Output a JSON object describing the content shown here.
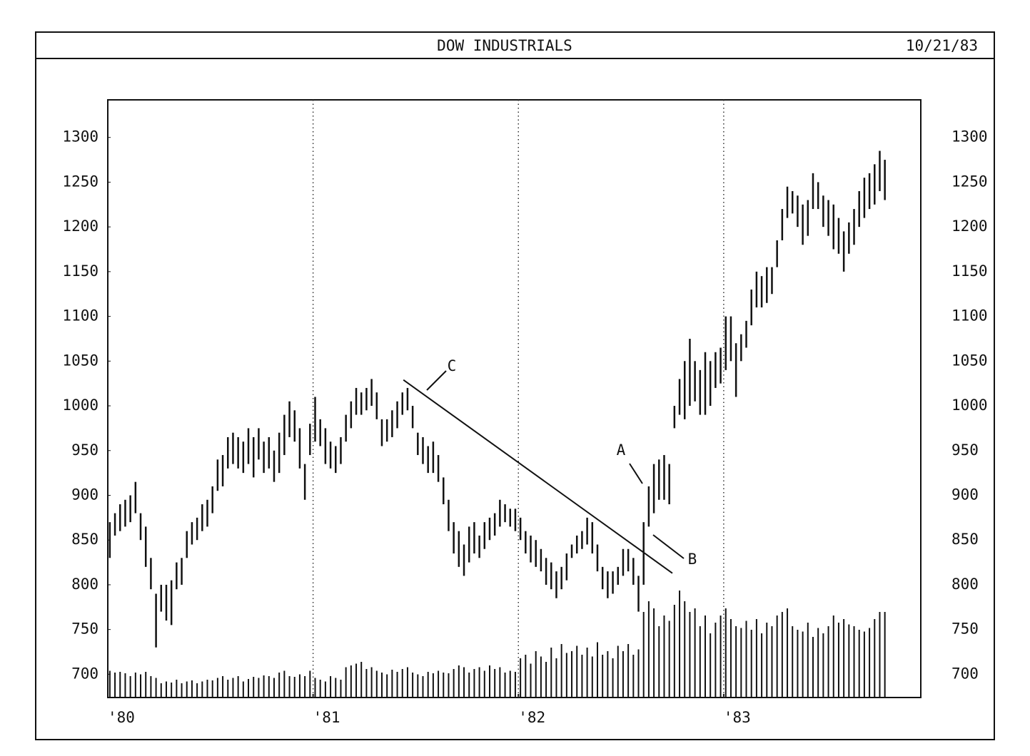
{
  "chart_data": {
    "type": "hlc-bar",
    "title": "DOW INDUSTRIALS",
    "date": "10/21/83",
    "xlim": [
      1980,
      1983.96
    ],
    "xticks": [
      {
        "value": 1980,
        "label": "'80"
      },
      {
        "value": 1981,
        "label": "'81"
      },
      {
        "value": 1982,
        "label": "'82"
      },
      {
        "value": 1983,
        "label": "'83"
      }
    ],
    "ylim": [
      674,
      1342
    ],
    "yticks": [
      700,
      750,
      800,
      850,
      900,
      950,
      1000,
      1050,
      1100,
      1150,
      1200,
      1250,
      1300
    ],
    "grid": "x-dotted",
    "color": "#111111",
    "volume_lim": [
      0,
      300
    ],
    "x": [
      1980.01,
      1980.035,
      1980.06,
      1980.085,
      1980.11,
      1980.135,
      1980.16,
      1980.185,
      1980.21,
      1980.235,
      1980.26,
      1980.285,
      1980.31,
      1980.335,
      1980.36,
      1980.385,
      1980.41,
      1980.435,
      1980.46,
      1980.485,
      1980.51,
      1980.535,
      1980.56,
      1980.585,
      1980.61,
      1980.635,
      1980.66,
      1980.685,
      1980.71,
      1980.735,
      1980.76,
      1980.785,
      1980.81,
      1980.835,
      1980.86,
      1980.885,
      1980.91,
      1980.935,
      1980.96,
      1980.985,
      1981.01,
      1981.035,
      1981.06,
      1981.085,
      1981.11,
      1981.135,
      1981.16,
      1981.185,
      1981.21,
      1981.235,
      1981.26,
      1981.285,
      1981.31,
      1981.335,
      1981.36,
      1981.385,
      1981.41,
      1981.435,
      1981.46,
      1981.485,
      1981.51,
      1981.535,
      1981.56,
      1981.585,
      1981.61,
      1981.635,
      1981.66,
      1981.685,
      1981.71,
      1981.735,
      1981.76,
      1981.785,
      1981.81,
      1981.835,
      1981.86,
      1981.885,
      1981.91,
      1981.935,
      1981.96,
      1981.985,
      1982.01,
      1982.035,
      1982.06,
      1982.085,
      1982.11,
      1982.135,
      1982.16,
      1982.185,
      1982.21,
      1982.235,
      1982.26,
      1982.285,
      1982.31,
      1982.335,
      1982.36,
      1982.385,
      1982.41,
      1982.435,
      1982.46,
      1982.485,
      1982.51,
      1982.535,
      1982.56,
      1982.585,
      1982.61,
      1982.635,
      1982.66,
      1982.685,
      1982.71,
      1982.735,
      1982.76,
      1982.785,
      1982.81,
      1982.835,
      1982.86,
      1982.885,
      1982.91,
      1982.935,
      1982.96,
      1982.985,
      1983.01,
      1983.035,
      1983.06,
      1983.085,
      1983.11,
      1983.135,
      1983.16,
      1983.185,
      1983.21,
      1983.235,
      1983.26,
      1983.285,
      1983.31,
      1983.335,
      1983.36,
      1983.385,
      1983.41,
      1983.435,
      1983.46,
      1983.485,
      1983.51,
      1983.535,
      1983.56,
      1983.585,
      1983.61,
      1983.635,
      1983.66,
      1983.685,
      1983.71,
      1983.735,
      1983.76,
      1983.785
    ],
    "high": [
      870,
      880,
      890,
      895,
      900,
      915,
      880,
      865,
      830,
      790,
      800,
      800,
      805,
      825,
      830,
      860,
      870,
      875,
      890,
      895,
      910,
      940,
      945,
      965,
      970,
      965,
      960,
      975,
      965,
      975,
      960,
      965,
      950,
      970,
      990,
      1005,
      995,
      975,
      935,
      980,
      1010,
      985,
      975,
      960,
      955,
      965,
      990,
      1005,
      1020,
      1015,
      1020,
      1030,
      1015,
      985,
      985,
      995,
      1005,
      1015,
      1020,
      1000,
      970,
      965,
      955,
      960,
      945,
      920,
      895,
      870,
      860,
      845,
      865,
      870,
      855,
      870,
      875,
      880,
      895,
      890,
      885,
      885,
      875,
      860,
      855,
      850,
      840,
      830,
      825,
      815,
      820,
      835,
      845,
      855,
      860,
      875,
      870,
      845,
      820,
      815,
      815,
      820,
      840,
      840,
      830,
      810,
      870,
      910,
      935,
      940,
      945,
      935,
      1000,
      1030,
      1050,
      1075,
      1050,
      1040,
      1060,
      1050,
      1060,
      1065,
      1100,
      1100,
      1070,
      1080,
      1095,
      1130,
      1150,
      1145,
      1155,
      1155,
      1185,
      1220,
      1245,
      1240,
      1235,
      1225,
      1230,
      1260,
      1250,
      1235,
      1230,
      1225,
      1210,
      1195,
      1205,
      1220,
      1240,
      1255,
      1260,
      1270,
      1285,
      1275
    ],
    "low": [
      830,
      855,
      860,
      865,
      870,
      880,
      850,
      820,
      795,
      730,
      770,
      760,
      755,
      795,
      800,
      830,
      845,
      850,
      860,
      865,
      880,
      905,
      910,
      930,
      935,
      930,
      925,
      935,
      920,
      940,
      925,
      930,
      915,
      925,
      945,
      965,
      960,
      930,
      895,
      945,
      960,
      955,
      935,
      930,
      925,
      935,
      960,
      975,
      990,
      990,
      995,
      1000,
      985,
      955,
      960,
      965,
      975,
      990,
      995,
      975,
      945,
      935,
      925,
      925,
      915,
      890,
      860,
      835,
      820,
      810,
      825,
      835,
      830,
      840,
      850,
      855,
      865,
      870,
      865,
      860,
      850,
      835,
      825,
      820,
      815,
      800,
      795,
      785,
      795,
      805,
      830,
      835,
      840,
      845,
      835,
      815,
      795,
      785,
      790,
      800,
      810,
      815,
      800,
      770,
      800,
      865,
      880,
      895,
      895,
      890,
      975,
      990,
      985,
      1000,
      1005,
      990,
      990,
      1000,
      1020,
      1025,
      1040,
      1050,
      1010,
      1050,
      1065,
      1090,
      1110,
      1110,
      1115,
      1125,
      1155,
      1185,
      1210,
      1215,
      1200,
      1180,
      1190,
      1220,
      1220,
      1200,
      1190,
      1175,
      1170,
      1150,
      1170,
      1180,
      1200,
      1210,
      1220,
      1225,
      1240,
      1230
    ],
    "volume": [
      75,
      70,
      72,
      68,
      60,
      70,
      65,
      72,
      60,
      55,
      40,
      45,
      42,
      50,
      40,
      45,
      48,
      40,
      45,
      50,
      48,
      55,
      60,
      50,
      55,
      60,
      45,
      52,
      58,
      55,
      62,
      60,
      55,
      70,
      75,
      60,
      58,
      65,
      60,
      75,
      55,
      50,
      45,
      60,
      55,
      50,
      85,
      90,
      95,
      100,
      80,
      85,
      75,
      70,
      65,
      78,
      72,
      80,
      85,
      70,
      65,
      60,
      72,
      68,
      75,
      70,
      68,
      80,
      90,
      85,
      70,
      80,
      85,
      75,
      90,
      80,
      85,
      70,
      75,
      72,
      110,
      120,
      95,
      130,
      115,
      100,
      140,
      110,
      150,
      125,
      130,
      145,
      120,
      140,
      115,
      155,
      120,
      130,
      110,
      145,
      130,
      150,
      120,
      135,
      240,
      270,
      250,
      200,
      230,
      215,
      260,
      300,
      270,
      240,
      250,
      200,
      230,
      180,
      210,
      230,
      250,
      220,
      200,
      195,
      215,
      190,
      220,
      180,
      210,
      200,
      230,
      240,
      250,
      200,
      190,
      185,
      210,
      170,
      195,
      180,
      200,
      230,
      210,
      220,
      205,
      200,
      190,
      185,
      195,
      220,
      240,
      240
    ],
    "trendline": {
      "x": [
        1981.44,
        1982.75
      ],
      "y": [
        1029,
        813
      ]
    },
    "annotations": [
      "A",
      "B",
      "C"
    ]
  }
}
